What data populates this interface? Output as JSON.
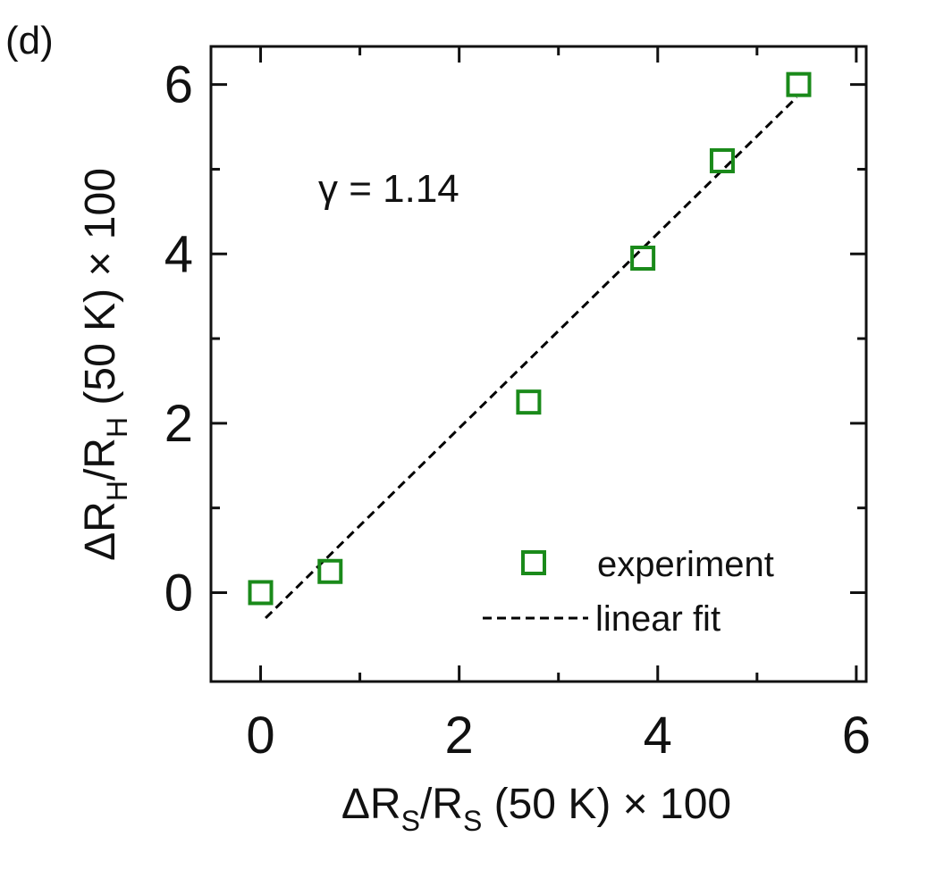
{
  "panel_label": "(d)",
  "annotation": "γ = 1.14",
  "chart_data": {
    "type": "scatter",
    "xlabel": {
      "pre": "ΔR",
      "sub1": "S",
      "mid": "/R",
      "sub2": "S",
      "post": " (50 K) × 100"
    },
    "ylabel": {
      "pre": "ΔR",
      "sub1": "H",
      "mid": "/R",
      "sub2": "H",
      "post": " (50 K) × 100"
    },
    "xlim": [
      -0.5,
      6.1
    ],
    "ylim": [
      -1.05,
      6.45
    ],
    "x_ticks": [
      0,
      2,
      4,
      6
    ],
    "y_ticks": [
      0,
      2,
      4,
      6
    ],
    "x_tick_labels": [
      "0",
      "2",
      "4",
      "6"
    ],
    "y_tick_labels": [
      "0",
      "2",
      "4",
      "6"
    ],
    "x_minor_ticks": [
      1,
      3,
      5
    ],
    "y_minor_ticks": [
      1,
      3,
      5
    ],
    "grid": false,
    "legend_position": "bottom-right",
    "series": [
      {
        "name": "experiment",
        "kind": "markers",
        "marker": "open-square",
        "color": "#1a8a1a",
        "points": [
          {
            "x": 0.0,
            "y": 0.0
          },
          {
            "x": 0.7,
            "y": 0.25
          },
          {
            "x": 2.7,
            "y": 2.25
          },
          {
            "x": 3.85,
            "y": 3.95
          },
          {
            "x": 4.65,
            "y": 5.1
          },
          {
            "x": 5.42,
            "y": 6.0
          }
        ]
      },
      {
        "name": "linear fit",
        "kind": "dashed-line",
        "color": "#000000",
        "points": [
          {
            "x": 0.05,
            "y": -0.3
          },
          {
            "x": 5.4,
            "y": 5.85
          }
        ]
      }
    ]
  }
}
